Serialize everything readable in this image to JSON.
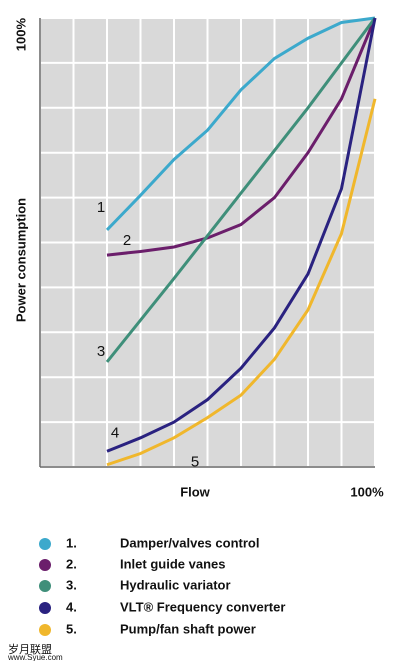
{
  "chart_data": {
    "type": "line",
    "xlabel": "Flow",
    "ylabel": "Power consumption",
    "xlim": [
      0,
      100
    ],
    "ylim": [
      0,
      100
    ],
    "xticks": [
      {
        "value": 100,
        "label": "100%"
      }
    ],
    "yticks": [
      {
        "value": 100,
        "label": "100%"
      }
    ],
    "grid": true,
    "series": [
      {
        "name": "Damper/valves control",
        "number": "1.",
        "label": "1",
        "color": "#3ca9cc",
        "x": [
          20,
          30,
          40,
          50,
          60,
          70,
          80,
          90,
          100
        ],
        "values": [
          52.8,
          60.5,
          68.5,
          75,
          84,
          91,
          95.5,
          99,
          100
        ]
      },
      {
        "name": "Inlet guide vanes",
        "number": "2.",
        "label": "2",
        "color": "#6b1e6b",
        "x": [
          20,
          30,
          40,
          50,
          60,
          70,
          80,
          90,
          100
        ],
        "values": [
          47.2,
          48,
          49,
          51,
          54,
          60,
          70,
          82,
          100
        ]
      },
      {
        "name": "Hydraulic variator",
        "number": "3.",
        "label": "3",
        "color": "#3f8f7a",
        "x": [
          20,
          40,
          60,
          80,
          100
        ],
        "values": [
          23.4,
          42,
          61,
          80,
          100
        ]
      },
      {
        "name": "VLT® Frequency converter",
        "number": "4.",
        "label": "4",
        "color": "#2a2280",
        "x": [
          20,
          30,
          40,
          50,
          60,
          70,
          80,
          90,
          100
        ],
        "values": [
          3.5,
          6.5,
          10,
          15,
          22,
          31,
          43,
          62,
          100
        ]
      },
      {
        "name": "Pump/fan shaft power",
        "number": "5.",
        "label": "5",
        "color": "#f0b72c",
        "x": [
          20,
          30,
          40,
          50,
          60,
          70,
          80,
          90,
          100
        ],
        "values": [
          0.5,
          3,
          6.5,
          11,
          16,
          24,
          35,
          52,
          82
        ]
      }
    ]
  },
  "watermark": {
    "site": "岁月联盟",
    "url": "www.Syue.com"
  }
}
